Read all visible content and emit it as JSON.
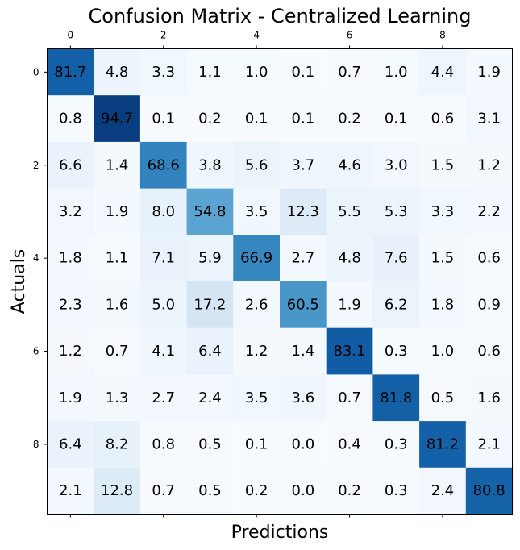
{
  "chart_data": {
    "type": "heatmap",
    "title": "Confusion Matrix - Centralized Learning",
    "xlabel": "Predictions",
    "ylabel": "Actuals",
    "x_tick_labels": [
      "0",
      "2",
      "4",
      "6",
      "8"
    ],
    "x_tick_positions": [
      0,
      2,
      4,
      6,
      8
    ],
    "y_tick_labels": [
      "0",
      "2",
      "4",
      "6",
      "8"
    ],
    "y_tick_positions": [
      0,
      2,
      4,
      6,
      8
    ],
    "x_ticks_position": "top",
    "colormap": "Blues",
    "value_range": [
      0,
      100
    ],
    "rows": [
      [
        "81.7",
        "4.8",
        "3.3",
        "1.1",
        "1.0",
        "0.1",
        "0.7",
        "1.0",
        "4.4",
        "1.9"
      ],
      [
        "0.8",
        "94.7",
        "0.1",
        "0.2",
        "0.1",
        "0.1",
        "0.2",
        "0.1",
        "0.6",
        "3.1"
      ],
      [
        "6.6",
        "1.4",
        "68.6",
        "3.8",
        "5.6",
        "3.7",
        "4.6",
        "3.0",
        "1.5",
        "1.2"
      ],
      [
        "3.2",
        "1.9",
        "8.0",
        "54.8",
        "3.5",
        "12.3",
        "5.5",
        "5.3",
        "3.3",
        "2.2"
      ],
      [
        "1.8",
        "1.1",
        "7.1",
        "5.9",
        "66.9",
        "2.7",
        "4.8",
        "7.6",
        "1.5",
        "0.6"
      ],
      [
        "2.3",
        "1.6",
        "5.0",
        "17.2",
        "2.6",
        "60.5",
        "1.9",
        "6.2",
        "1.8",
        "0.9"
      ],
      [
        "1.2",
        "0.7",
        "4.1",
        "6.4",
        "1.2",
        "1.4",
        "83.1",
        "0.3",
        "1.0",
        "0.6"
      ],
      [
        "1.9",
        "1.3",
        "2.7",
        "2.4",
        "3.5",
        "3.6",
        "0.7",
        "81.8",
        "0.5",
        "1.6"
      ],
      [
        "6.4",
        "8.2",
        "0.8",
        "0.5",
        "0.1",
        "0.0",
        "0.4",
        "0.3",
        "81.2",
        "2.1"
      ],
      [
        "2.1",
        "12.8",
        "0.7",
        "0.5",
        "0.2",
        "0.0",
        "0.2",
        "0.3",
        "2.4",
        "80.8"
      ]
    ]
  }
}
